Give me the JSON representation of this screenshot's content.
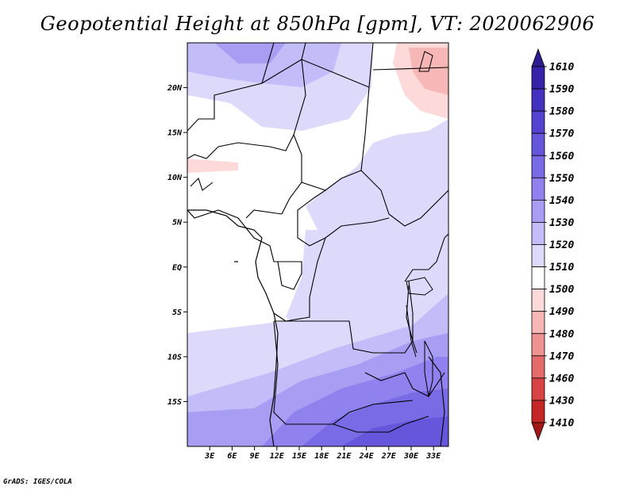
{
  "title": "Geopotential Height at 850hPa [gpm], VT: 2020062906",
  "credit": "GrADS: IGES/COLA",
  "map": {
    "lat_ticks": [
      {
        "label": "20N",
        "lat": 20
      },
      {
        "label": "15N",
        "lat": 15
      },
      {
        "label": "10N",
        "lat": 10
      },
      {
        "label": "5N",
        "lat": 5
      },
      {
        "label": "EQ",
        "lat": 0
      },
      {
        "label": "5S",
        "lat": -5
      },
      {
        "label": "10S",
        "lat": -10
      },
      {
        "label": "15S",
        "lat": -15
      }
    ],
    "lon_ticks": [
      {
        "label": "3E",
        "lon": 3
      },
      {
        "label": "6E",
        "lon": 6
      },
      {
        "label": "9E",
        "lon": 9
      },
      {
        "label": "12E",
        "lon": 12
      },
      {
        "label": "15E",
        "lon": 15
      },
      {
        "label": "18E",
        "lon": 18
      },
      {
        "label": "21E",
        "lon": 21
      },
      {
        "label": "24E",
        "lon": 24
      },
      {
        "label": "27E",
        "lon": 27
      },
      {
        "label": "30E",
        "lon": 30
      },
      {
        "label": "33E",
        "lon": 33
      }
    ],
    "lon_range": [
      0,
      35
    ],
    "lat_range": [
      -20,
      25
    ]
  },
  "colorbar": {
    "levels": [
      "1610",
      "1590",
      "1580",
      "1570",
      "1560",
      "1550",
      "1540",
      "1530",
      "1520",
      "1510",
      "1500",
      "1490",
      "1480",
      "1470",
      "1460",
      "1430",
      "1410"
    ],
    "colors": [
      "#2a1d90",
      "#3423a8",
      "#4331bf",
      "#5442d0",
      "#6556dc",
      "#796be6",
      "#8f82ee",
      "#a79df3",
      "#c2bcf8",
      "#ddd9fb",
      "#ffffff",
      "#fdd9d9",
      "#f8b7b7",
      "#ef9292",
      "#e56b6b",
      "#d84343",
      "#c52727",
      "#a31818"
    ]
  }
}
